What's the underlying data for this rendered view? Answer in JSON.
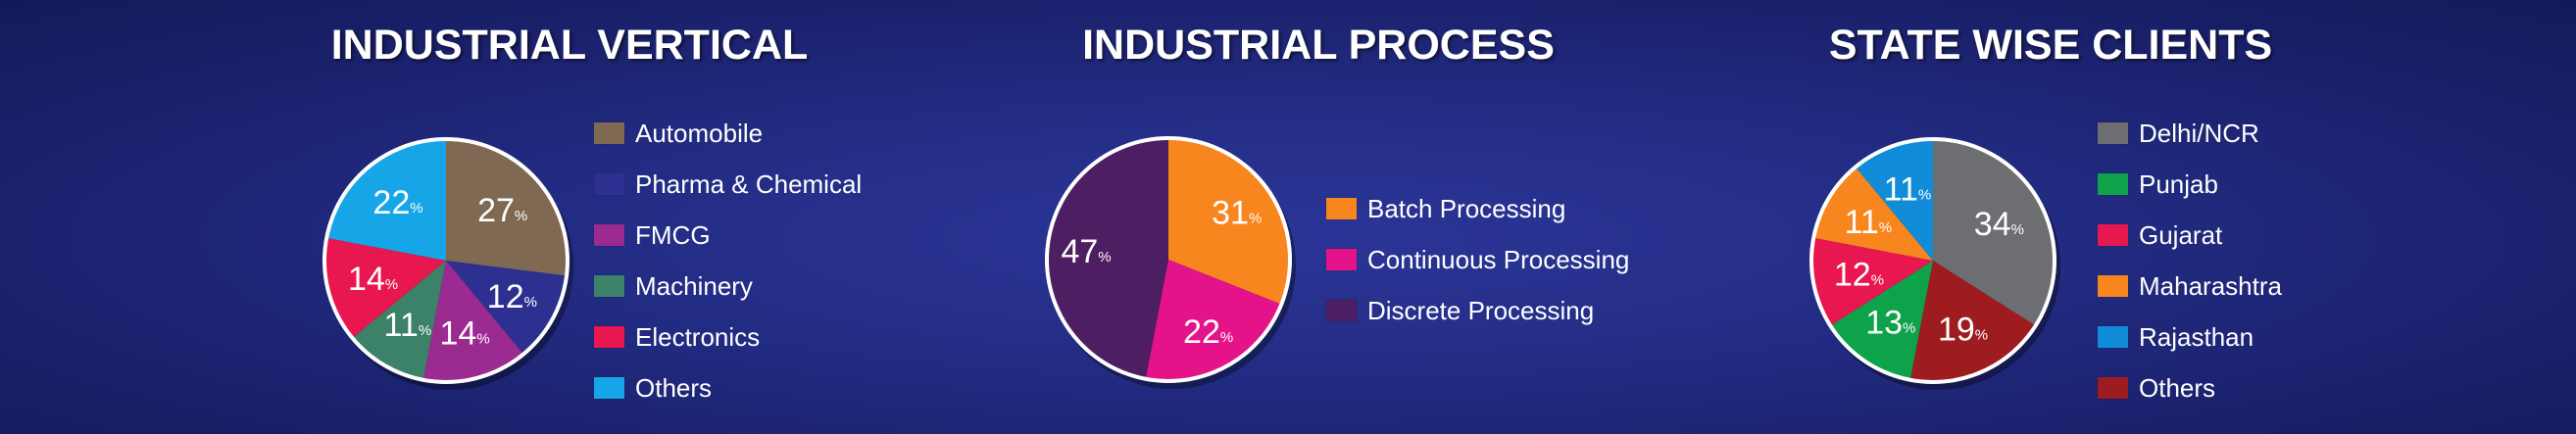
{
  "chart_data": [
    {
      "type": "pie",
      "title": "INDUSTRIAL VERTICAL",
      "legend_position": "right",
      "slices": [
        {
          "label": "Automobile",
          "value": 27,
          "display": "27",
          "color": "#7f6953"
        },
        {
          "label": "Pharma & Chemical",
          "value": 12,
          "display": "12",
          "color": "#2e3091"
        },
        {
          "label": "FMCG",
          "value": 14,
          "display": "14",
          "color": "#9b2a91"
        },
        {
          "label": "Machinery",
          "value": 11,
          "display": "11",
          "color": "#3c8268"
        },
        {
          "label": "Electronics",
          "value": 14,
          "display": "14",
          "color": "#e8174f"
        },
        {
          "label": "Others",
          "value": 22,
          "display": "22",
          "color": "#16a6e8"
        }
      ]
    },
    {
      "type": "pie",
      "title": "INDUSTRIAL PROCESS",
      "legend_position": "right",
      "slices": [
        {
          "label": "Batch Processing",
          "value": 31,
          "display": "31",
          "color": "#f7861e"
        },
        {
          "label": "Continuous Processing",
          "value": 22,
          "display": "22",
          "color": "#e5138a"
        },
        {
          "label": "Discrete Processing",
          "value": 47,
          "display": "47",
          "color": "#4d1e62"
        }
      ]
    },
    {
      "type": "pie",
      "title": "STATE WISE CLIENTS",
      "legend_position": "right",
      "slices": [
        {
          "label": "Delhi/NCR",
          "value": 34,
          "display": "34",
          "color": "#6d6e71"
        },
        {
          "label": "Punjab",
          "value": 13,
          "display": "13",
          "color": "#0ea24b"
        },
        {
          "label": "Gujarat",
          "value": 12,
          "display": "12",
          "color": "#e8174f"
        },
        {
          "label": "Maharashtra",
          "value": 11,
          "display": "11",
          "color": "#f7861e"
        },
        {
          "label": "Rajasthan",
          "value": 11,
          "display": "11",
          "color": "#108cd8"
        },
        {
          "label": "Others",
          "value": 19,
          "display": "19",
          "color": "#9e1c1f"
        }
      ]
    }
  ],
  "pie_order": [
    [
      0,
      1,
      2,
      3,
      4,
      5
    ],
    [
      0,
      1,
      2
    ],
    [
      0,
      5,
      1,
      2,
      3,
      4
    ]
  ],
  "percent_symbol": "%"
}
